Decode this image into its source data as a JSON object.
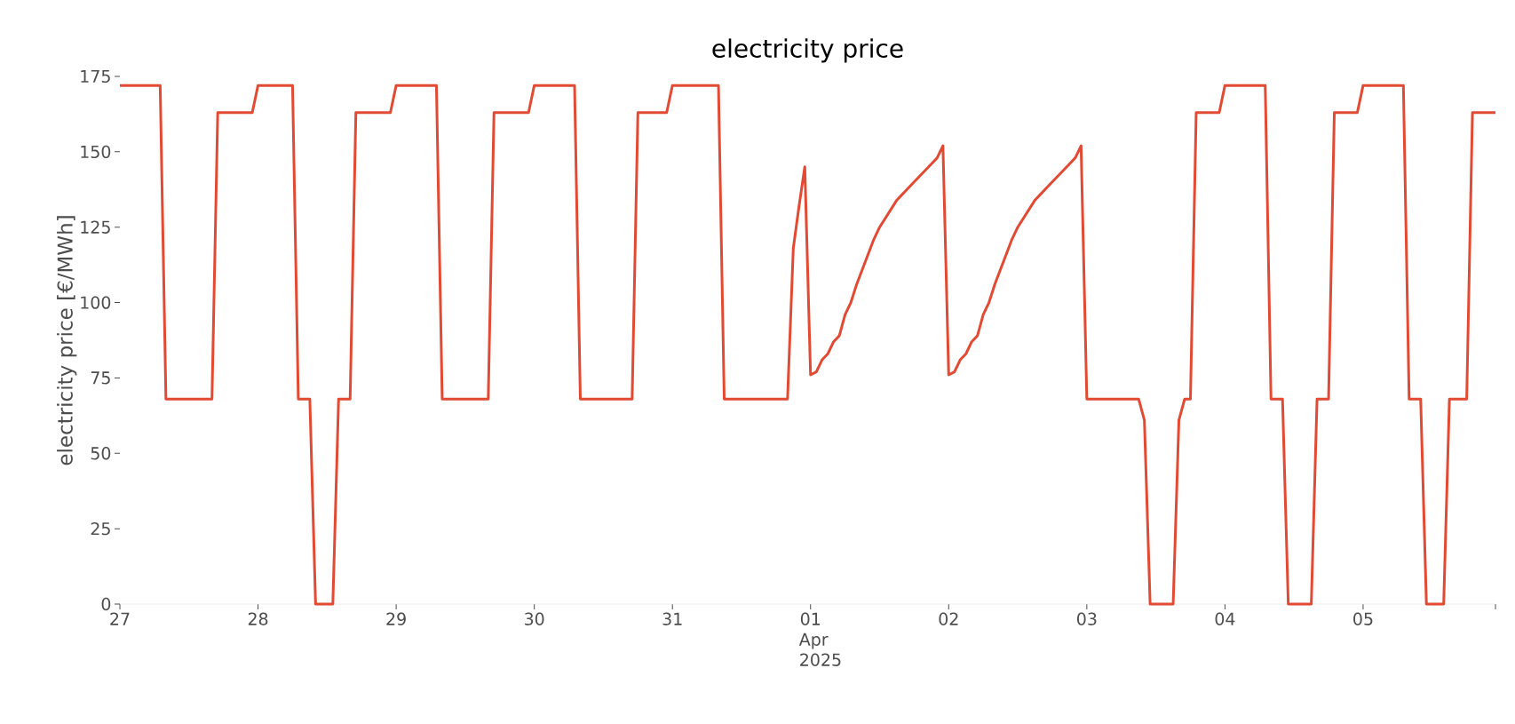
{
  "chart_data": {
    "type": "line",
    "title": "electricity price",
    "ylabel": "electricity price [€/MWh]",
    "color": "#e24a33",
    "x": [
      "2025-03-27T00:00",
      "2025-03-27T07:00",
      "2025-03-27T08:00",
      "2025-03-27T16:00",
      "2025-03-27T17:00",
      "2025-03-27T23:00",
      "2025-03-28T00:00",
      "2025-03-28T06:00",
      "2025-03-28T07:00",
      "2025-03-28T09:00",
      "2025-03-28T10:00",
      "2025-03-28T13:00",
      "2025-03-28T14:00",
      "2025-03-28T16:00",
      "2025-03-28T17:00",
      "2025-03-28T23:00",
      "2025-03-29T00:00",
      "2025-03-29T07:00",
      "2025-03-29T08:00",
      "2025-03-29T16:00",
      "2025-03-29T17:00",
      "2025-03-29T23:00",
      "2025-03-30T00:00",
      "2025-03-30T07:00",
      "2025-03-30T08:00",
      "2025-03-30T17:00",
      "2025-03-30T18:00",
      "2025-03-30T23:00",
      "2025-03-31T00:00",
      "2025-03-31T08:00",
      "2025-03-31T09:00",
      "2025-03-31T20:00",
      "2025-03-31T21:00",
      "2025-03-31T22:00",
      "2025-03-31T23:00",
      "2025-04-01T00:00",
      "2025-04-01T01:00",
      "2025-04-01T02:00",
      "2025-04-01T03:00",
      "2025-04-01T04:00",
      "2025-04-01T05:00",
      "2025-04-01T06:00",
      "2025-04-01T07:00",
      "2025-04-01T08:00",
      "2025-04-01T09:00",
      "2025-04-01T10:00",
      "2025-04-01T11:00",
      "2025-04-01T12:00",
      "2025-04-01T13:00",
      "2025-04-01T14:00",
      "2025-04-01T15:00",
      "2025-04-01T16:00",
      "2025-04-01T17:00",
      "2025-04-01T18:00",
      "2025-04-01T19:00",
      "2025-04-01T20:00",
      "2025-04-01T21:00",
      "2025-04-01T22:00",
      "2025-04-01T23:00",
      "2025-04-02T00:00",
      "2025-04-02T01:00",
      "2025-04-02T02:00",
      "2025-04-02T03:00",
      "2025-04-02T04:00",
      "2025-04-02T05:00",
      "2025-04-02T06:00",
      "2025-04-02T07:00",
      "2025-04-02T08:00",
      "2025-04-02T09:00",
      "2025-04-02T10:00",
      "2025-04-02T11:00",
      "2025-04-02T12:00",
      "2025-04-02T13:00",
      "2025-04-02T14:00",
      "2025-04-02T15:00",
      "2025-04-02T16:00",
      "2025-04-02T17:00",
      "2025-04-02T18:00",
      "2025-04-02T19:00",
      "2025-04-02T20:00",
      "2025-04-02T21:00",
      "2025-04-02T22:00",
      "2025-04-02T23:00",
      "2025-04-03T00:00",
      "2025-04-03T09:00",
      "2025-04-03T10:00",
      "2025-04-03T11:00",
      "2025-04-03T15:00",
      "2025-04-03T16:00",
      "2025-04-03T17:00",
      "2025-04-03T18:00",
      "2025-04-03T19:00",
      "2025-04-03T23:00",
      "2025-04-04T00:00",
      "2025-04-04T07:00",
      "2025-04-04T08:00",
      "2025-04-04T10:00",
      "2025-04-04T11:00",
      "2025-04-04T15:00",
      "2025-04-04T16:00",
      "2025-04-04T18:00",
      "2025-04-04T19:00",
      "2025-04-04T23:00",
      "2025-04-05T00:00",
      "2025-04-05T07:00",
      "2025-04-05T08:00",
      "2025-04-05T10:00",
      "2025-04-05T11:00",
      "2025-04-05T14:00",
      "2025-04-05T15:00",
      "2025-04-05T18:00",
      "2025-04-05T19:00",
      "2025-04-05T23:00"
    ],
    "values": [
      172,
      172,
      68,
      68,
      163,
      163,
      172,
      172,
      68,
      68,
      0,
      0,
      68,
      68,
      163,
      163,
      172,
      172,
      68,
      68,
      163,
      163,
      172,
      172,
      68,
      68,
      163,
      163,
      172,
      172,
      68,
      68,
      118,
      132,
      145,
      76,
      77,
      81,
      83,
      87,
      89,
      96,
      100,
      106,
      111,
      116,
      121,
      125,
      128,
      131,
      134,
      136,
      138,
      140,
      142,
      144,
      146,
      148,
      152,
      76,
      77,
      81,
      83,
      87,
      89,
      96,
      100,
      106,
      111,
      116,
      121,
      125,
      128,
      131,
      134,
      136,
      138,
      140,
      142,
      144,
      146,
      148,
      152,
      68,
      68,
      61,
      0,
      0,
      61,
      68,
      68,
      163,
      163,
      172,
      172,
      68,
      68,
      0,
      0,
      68,
      68,
      163,
      163,
      172,
      172,
      68,
      68,
      0,
      0,
      68,
      68,
      163,
      163
    ],
    "xlim": [
      "2025-03-27T00:00",
      "2025-04-05T23:00"
    ],
    "ylim": [
      0,
      175
    ],
    "xticks": [
      {
        "value": "2025-03-27",
        "label": "27"
      },
      {
        "value": "2025-03-28",
        "label": "28"
      },
      {
        "value": "2025-03-29",
        "label": "29"
      },
      {
        "value": "2025-03-30",
        "label": "30"
      },
      {
        "value": "2025-03-31",
        "label": "31"
      },
      {
        "value": "2025-04-01",
        "label": "01 Apr 2025"
      },
      {
        "value": "2025-04-02",
        "label": "02"
      },
      {
        "value": "2025-04-03",
        "label": "03"
      },
      {
        "value": "2025-04-04",
        "label": "04"
      },
      {
        "value": "2025-04-05",
        "label": "05"
      },
      {
        "value": "2025-04-05T23:00",
        "label": null
      }
    ],
    "yticks": [
      0,
      25,
      50,
      75,
      100,
      125,
      150,
      175
    ]
  }
}
